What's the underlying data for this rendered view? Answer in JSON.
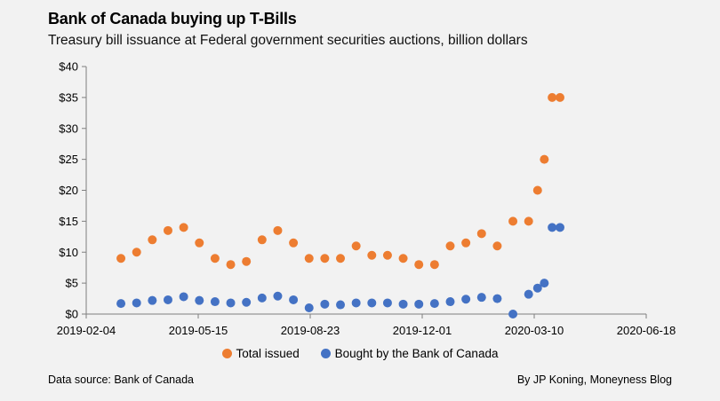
{
  "colors": {
    "total": "#ed7d31",
    "bought": "#4472c4",
    "axis": "#7f7f7f"
  },
  "chart_data": {
    "type": "scatter",
    "title": "Bank of Canada buying up T-Bills",
    "subtitle": "Treasury bill issuance at Federal government securities auctions, billion dollars",
    "x_axis": {
      "type": "date",
      "min": "2019-02-04",
      "max": "2020-06-18",
      "tick_labels": [
        "2019-02-04",
        "2019-05-15",
        "2019-08-23",
        "2019-12-01",
        "2020-03-10",
        "2020-06-18"
      ]
    },
    "y_axis": {
      "min": 0,
      "max": 40,
      "tick_labels": [
        "$0",
        "$5",
        "$10",
        "$15",
        "$20",
        "$25",
        "$30",
        "$35",
        "$40"
      ]
    },
    "grid": false,
    "legend_position": "bottom",
    "series": [
      {
        "name": "Total issued",
        "points": [
          [
            "2019-03-07",
            9
          ],
          [
            "2019-03-21",
            10
          ],
          [
            "2019-04-04",
            12
          ],
          [
            "2019-04-18",
            13.5
          ],
          [
            "2019-05-02",
            14
          ],
          [
            "2019-05-16",
            11.5
          ],
          [
            "2019-05-30",
            9
          ],
          [
            "2019-06-13",
            8
          ],
          [
            "2019-06-27",
            8.5
          ],
          [
            "2019-07-11",
            12
          ],
          [
            "2019-07-25",
            13.5
          ],
          [
            "2019-08-08",
            11.5
          ],
          [
            "2019-08-22",
            9
          ],
          [
            "2019-09-05",
            9
          ],
          [
            "2019-09-19",
            9
          ],
          [
            "2019-10-03",
            11
          ],
          [
            "2019-10-17",
            9.5
          ],
          [
            "2019-10-31",
            9.5
          ],
          [
            "2019-11-14",
            9
          ],
          [
            "2019-11-28",
            8
          ],
          [
            "2019-12-12",
            8
          ],
          [
            "2019-12-26",
            11
          ],
          [
            "2020-01-09",
            11.5
          ],
          [
            "2020-01-23",
            13
          ],
          [
            "2020-02-06",
            11
          ],
          [
            "2020-02-20",
            15
          ],
          [
            "2020-03-05",
            15
          ],
          [
            "2020-03-13",
            20
          ],
          [
            "2020-03-19",
            25
          ],
          [
            "2020-03-26",
            35
          ],
          [
            "2020-04-02",
            35
          ]
        ]
      },
      {
        "name": "Bought by the Bank of Canada",
        "points": [
          [
            "2019-03-07",
            1.7
          ],
          [
            "2019-03-21",
            1.8
          ],
          [
            "2019-04-04",
            2.2
          ],
          [
            "2019-04-18",
            2.3
          ],
          [
            "2019-05-02",
            2.8
          ],
          [
            "2019-05-16",
            2.2
          ],
          [
            "2019-05-30",
            2.0
          ],
          [
            "2019-06-13",
            1.8
          ],
          [
            "2019-06-27",
            1.9
          ],
          [
            "2019-07-11",
            2.6
          ],
          [
            "2019-07-25",
            2.9
          ],
          [
            "2019-08-08",
            2.3
          ],
          [
            "2019-08-22",
            1.0
          ],
          [
            "2019-09-05",
            1.6
          ],
          [
            "2019-09-19",
            1.5
          ],
          [
            "2019-10-03",
            1.8
          ],
          [
            "2019-10-17",
            1.8
          ],
          [
            "2019-10-31",
            1.8
          ],
          [
            "2019-11-14",
            1.6
          ],
          [
            "2019-11-28",
            1.6
          ],
          [
            "2019-12-12",
            1.7
          ],
          [
            "2019-12-26",
            2.0
          ],
          [
            "2020-01-09",
            2.4
          ],
          [
            "2020-01-23",
            2.7
          ],
          [
            "2020-02-06",
            2.5
          ],
          [
            "2020-02-20",
            0.0
          ],
          [
            "2020-03-05",
            3.2
          ],
          [
            "2020-03-13",
            4.2
          ],
          [
            "2020-03-19",
            5.0
          ],
          [
            "2020-03-26",
            14
          ],
          [
            "2020-04-02",
            14
          ]
        ]
      }
    ]
  },
  "footer": {
    "source": "Data source: Bank of Canada",
    "credit": "By JP Koning, Moneyness Blog"
  }
}
